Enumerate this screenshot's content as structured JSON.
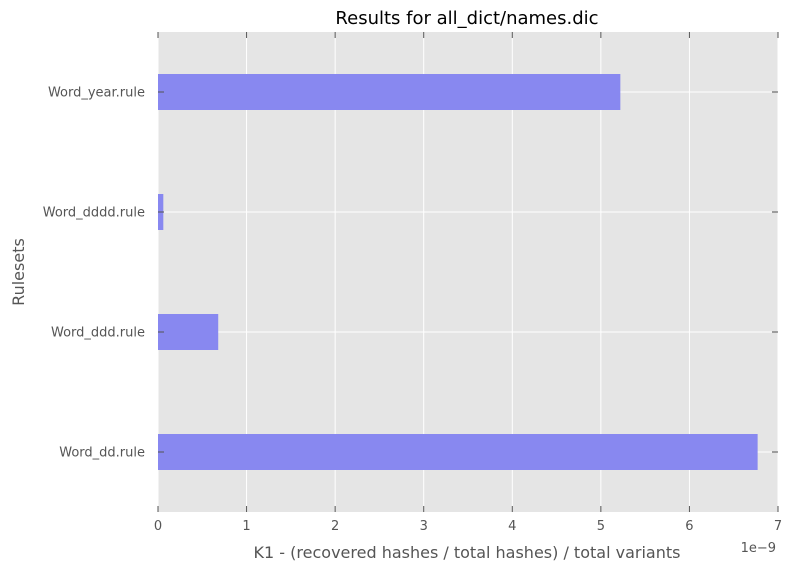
{
  "chart_data": {
    "type": "bar",
    "orientation": "horizontal",
    "title": "Results for all_dict/names.dic",
    "xlabel": "K1 - (recovered hashes / total hashes) / total variants",
    "ylabel": "Rulesets",
    "x_offset_label": "1e−9",
    "x_scale": 1e-09,
    "xlim": [
      0,
      7
    ],
    "xticks": [
      0,
      1,
      2,
      3,
      4,
      5,
      6,
      7
    ],
    "grid": true,
    "categories": [
      "Word_dd.rule",
      "Word_ddd.rule",
      "Word_dddd.rule",
      "Word_year.rule"
    ],
    "values": [
      6.77,
      0.68,
      0.06,
      5.22
    ],
    "bar_color": "#8888f0",
    "background_color": "#e5e5e5"
  }
}
